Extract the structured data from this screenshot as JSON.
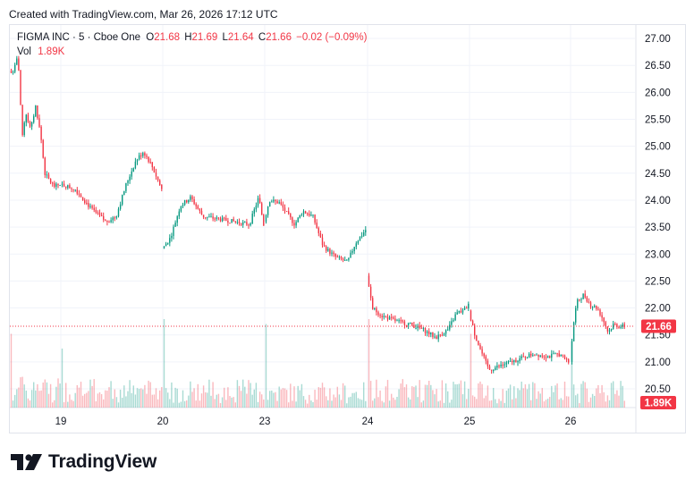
{
  "header": {
    "created": "Created with TradingView.com, Mar 26, 2026 17:12 UTC"
  },
  "legend": {
    "symbol": "FIGMA INC · 5 · Cboe One",
    "o_label": "O",
    "o_value": "21.68",
    "h_label": "H",
    "h_value": "21.69",
    "l_label": "L",
    "l_value": "21.64",
    "c_label": "C",
    "c_value": "21.66",
    "change": "−0.02 (−0.09%)",
    "vol_label": "Vol",
    "vol_value": "1.89K"
  },
  "brand": {
    "name": "TradingView"
  },
  "colors": {
    "up": "#089981",
    "down": "#f23645",
    "grid": "#f0f3fa",
    "text": "#131722"
  },
  "chart_data": {
    "type": "candlestick",
    "interval": "5",
    "x_tick_labels": [
      "19",
      "20",
      "23",
      "24",
      "25",
      "26"
    ],
    "y_ticks": [
      20.5,
      21,
      21.5,
      22,
      22.5,
      23,
      23.5,
      24,
      24.5,
      25,
      25.5,
      26,
      26.5,
      27
    ],
    "y_tick_labels": [
      "20.50",
      "21.00",
      "21.50",
      "22.00",
      "22.50",
      "23.00",
      "23.50",
      "24.00",
      "24.50",
      "25.00",
      "25.50",
      "26.00",
      "26.50",
      "27.00"
    ],
    "ylim": [
      20.3,
      27.2
    ],
    "last_price": 21.66,
    "last_price_label": "21.66",
    "last_volume_label": "1.89K",
    "sessions": [
      {
        "label": "",
        "path": [
          [
            0,
            26.4
          ],
          [
            0.05,
            26.35
          ],
          [
            0.12,
            26.5
          ],
          [
            0.16,
            26.65
          ],
          [
            0.2,
            26.3
          ],
          [
            0.25,
            25.1
          ],
          [
            0.32,
            25.65
          ],
          [
            0.42,
            25.3
          ],
          [
            0.52,
            25.75
          ],
          [
            0.62,
            25.2
          ],
          [
            0.7,
            24.5
          ],
          [
            0.8,
            24.35
          ],
          [
            0.9,
            24.25
          ],
          [
            1,
            24.3
          ]
        ],
        "vol": [
          1500,
          500
        ]
      },
      {
        "label": "19",
        "path": [
          [
            0,
            24.3
          ],
          [
            0.15,
            24.2
          ],
          [
            0.3,
            23.85
          ],
          [
            0.45,
            23.6
          ],
          [
            0.55,
            23.7
          ],
          [
            0.65,
            24.3
          ],
          [
            0.75,
            24.75
          ],
          [
            0.82,
            24.9
          ],
          [
            0.9,
            24.65
          ],
          [
            1,
            24.2
          ]
        ],
        "vol": [
          1200,
          450
        ]
      },
      {
        "label": "20",
        "path": [
          [
            0,
            23.1
          ],
          [
            0.08,
            23.3
          ],
          [
            0.18,
            23.9
          ],
          [
            0.28,
            24.05
          ],
          [
            0.4,
            23.7
          ],
          [
            0.55,
            23.65
          ],
          [
            0.72,
            23.6
          ],
          [
            0.86,
            23.55
          ],
          [
            0.95,
            24.05
          ],
          [
            1,
            23.55
          ]
        ],
        "vol": [
          1800,
          450
        ]
      },
      {
        "label": "23",
        "path": [
          [
            0,
            23.6
          ],
          [
            0.05,
            24.0
          ],
          [
            0.15,
            23.95
          ],
          [
            0.3,
            23.55
          ],
          [
            0.38,
            23.8
          ],
          [
            0.48,
            23.7
          ],
          [
            0.58,
            23.15
          ],
          [
            0.7,
            22.95
          ],
          [
            0.82,
            22.85
          ],
          [
            0.9,
            23.2
          ],
          [
            1,
            23.45
          ]
        ],
        "vol": [
          1700,
          400
        ]
      },
      {
        "label": "24",
        "path": [
          [
            0,
            22.6
          ],
          [
            0.05,
            22.0
          ],
          [
            0.15,
            21.85
          ],
          [
            0.3,
            21.75
          ],
          [
            0.42,
            21.7
          ],
          [
            0.55,
            21.6
          ],
          [
            0.68,
            21.45
          ],
          [
            0.8,
            21.6
          ],
          [
            0.88,
            21.9
          ],
          [
            0.95,
            21.95
          ],
          [
            1,
            22.05
          ]
        ],
        "vol": [
          1800,
          450
        ]
      },
      {
        "label": "25",
        "path": [
          [
            0,
            21.95
          ],
          [
            0.05,
            21.55
          ],
          [
            0.12,
            21.2
          ],
          [
            0.2,
            20.85
          ],
          [
            0.35,
            20.95
          ],
          [
            0.5,
            21.05
          ],
          [
            0.65,
            21.15
          ],
          [
            0.8,
            21.1
          ],
          [
            0.9,
            21.15
          ],
          [
            1,
            21.0
          ]
        ],
        "vol": [
          1500,
          430
        ]
      },
      {
        "label": "26",
        "path": [
          [
            0,
            21.0
          ],
          [
            0.05,
            21.6
          ],
          [
            0.12,
            22.1
          ],
          [
            0.25,
            22.25
          ],
          [
            0.38,
            22.05
          ],
          [
            0.5,
            22.0
          ],
          [
            0.6,
            21.8
          ],
          [
            0.7,
            21.55
          ],
          [
            0.8,
            21.7
          ],
          [
            0.9,
            21.66
          ],
          [
            1,
            21.66
          ]
        ],
        "vol": [
          1400,
          420
        ]
      }
    ]
  }
}
